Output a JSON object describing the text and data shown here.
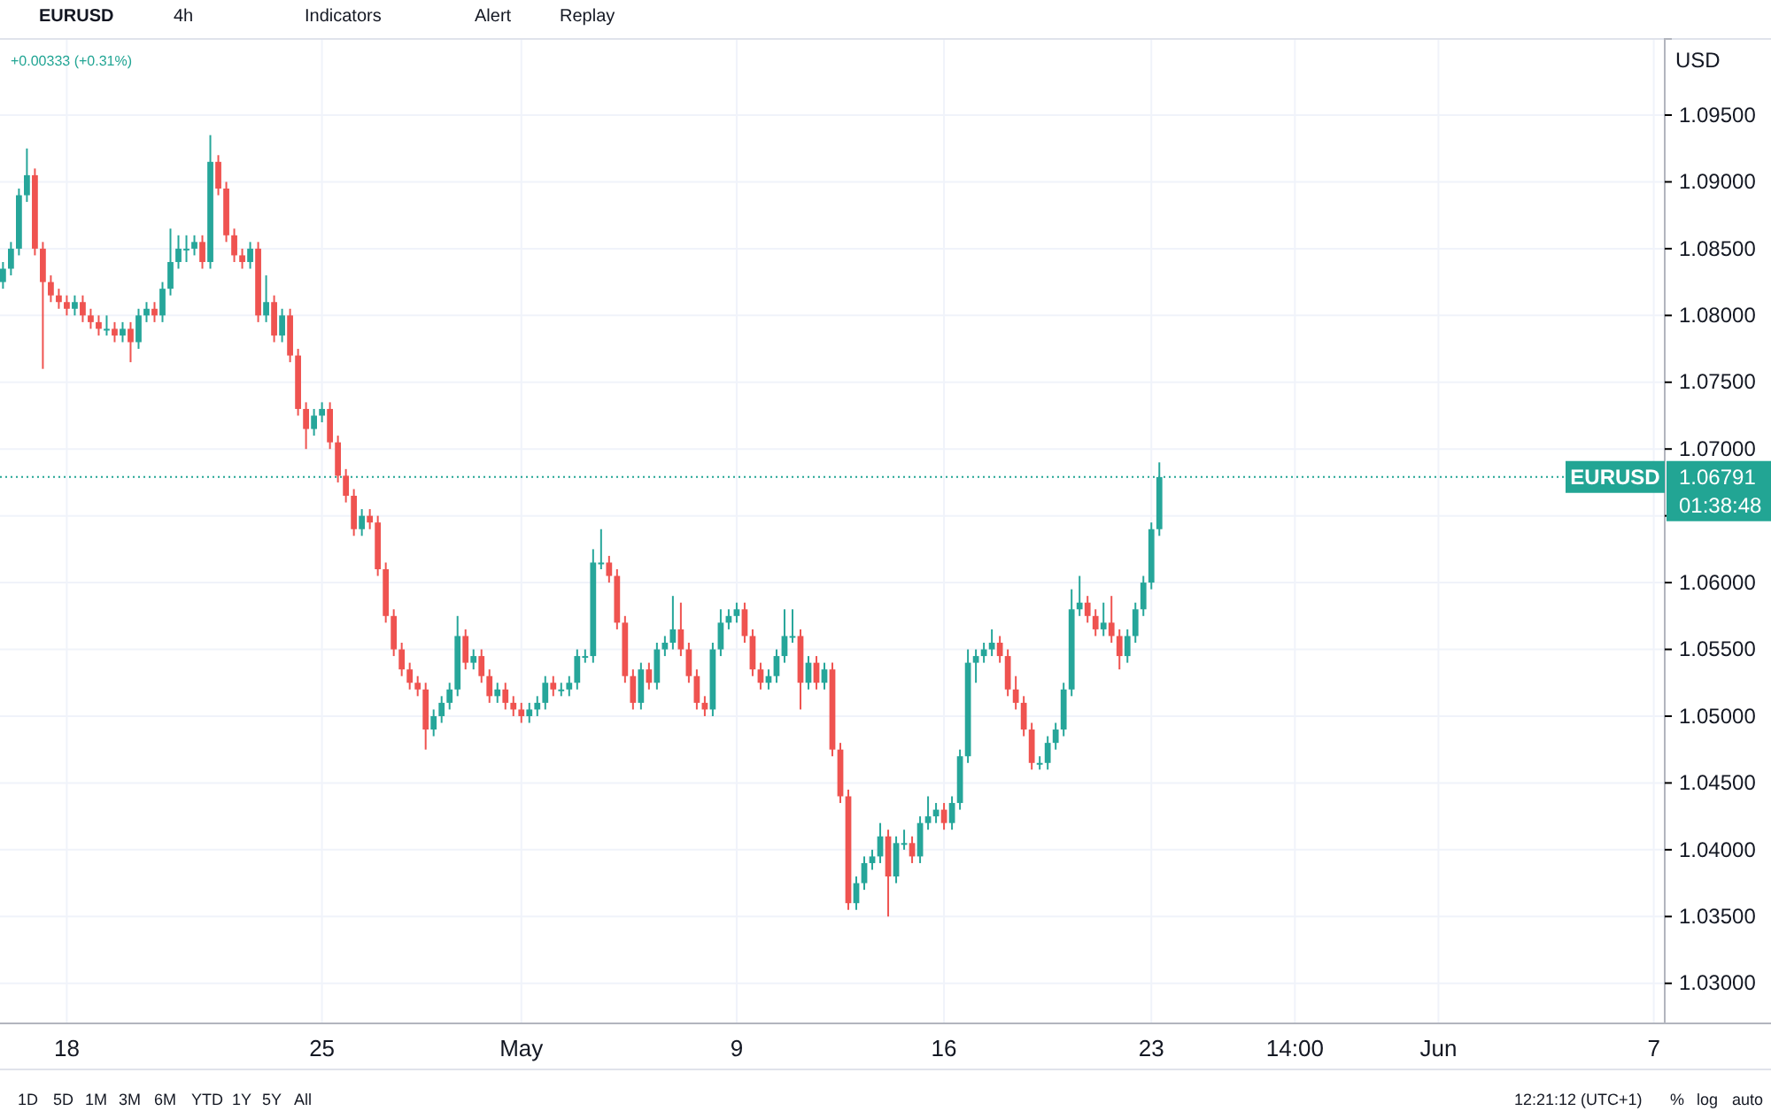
{
  "chart_data": {
    "type": "candlestick",
    "title": "EURUSD",
    "ylabel": "USD",
    "categories": [
      null,
      null,
      null,
      null,
      null,
      null,
      null,
      null,
      "18",
      null,
      null,
      null,
      null,
      null,
      null,
      null,
      null,
      null,
      null,
      null,
      null,
      null,
      null,
      null,
      null,
      null,
      null,
      null,
      null,
      null,
      null,
      null,
      null,
      null,
      null,
      null,
      null,
      null,
      null,
      null,
      "25",
      null,
      null,
      null,
      null,
      null,
      null,
      null,
      null,
      null,
      null,
      null,
      null,
      null,
      null,
      null,
      null,
      null,
      null,
      null,
      null,
      null,
      null,
      null,
      null,
      "May",
      null,
      null,
      null,
      null,
      null,
      null,
      null,
      null,
      null,
      null,
      null,
      null,
      null,
      null,
      null,
      null,
      null,
      null,
      null,
      null,
      null,
      null,
      null,
      null,
      null,
      null,
      "9",
      null,
      null,
      null,
      null,
      null,
      null,
      null,
      null,
      null,
      null,
      null,
      null,
      null,
      null,
      null,
      null,
      null,
      null,
      null,
      null,
      null,
      null,
      null,
      null,
      null,
      "16",
      null,
      null,
      null,
      null,
      null,
      null,
      null,
      null,
      null,
      null,
      null,
      null,
      null,
      null,
      null,
      null,
      null,
      null,
      null,
      null,
      null,
      null,
      null,
      null,
      null,
      "23",
      null,
      null,
      null,
      null,
      null,
      null,
      null,
      null,
      null,
      null,
      null,
      null,
      null,
      null,
      null,
      null,
      null,
      "14:00",
      null,
      null,
      null,
      null,
      null,
      null,
      null,
      null,
      null,
      null,
      null,
      null,
      null,
      null,
      null,
      null,
      null,
      "Jun",
      null,
      null,
      null,
      null,
      null,
      null,
      null,
      null,
      null,
      null,
      null,
      null,
      null,
      null,
      null,
      null,
      null,
      null,
      null,
      null,
      null,
      null,
      null,
      null,
      null,
      null,
      "7",
      null
    ],
    "ohlc": [
      [
        1.0825,
        1.084,
        1.082,
        1.0835
      ],
      [
        1.0835,
        1.0855,
        1.083,
        1.085
      ],
      [
        1.085,
        1.0895,
        1.0845,
        1.089
      ],
      [
        1.089,
        1.0925,
        1.0885,
        1.0905
      ],
      [
        1.0905,
        1.091,
        1.0845,
        1.085
      ],
      [
        1.085,
        1.0855,
        1.076,
        1.0825
      ],
      [
        1.0825,
        1.083,
        1.081,
        1.0815
      ],
      [
        1.0815,
        1.082,
        1.0805,
        1.081
      ],
      [
        1.081,
        1.0815,
        1.08,
        1.0805
      ],
      [
        1.0805,
        1.0815,
        1.08,
        1.081
      ],
      [
        1.081,
        1.0815,
        1.0795,
        1.08
      ],
      [
        1.08,
        1.0805,
        1.079,
        1.0795
      ],
      [
        1.0795,
        1.08,
        1.0785,
        1.079
      ],
      [
        1.079,
        1.08,
        1.0785,
        1.079
      ],
      [
        1.079,
        1.0795,
        1.078,
        1.0785
      ],
      [
        1.0785,
        1.0795,
        1.078,
        1.079
      ],
      [
        1.079,
        1.0795,
        1.0765,
        1.078
      ],
      [
        1.078,
        1.0805,
        1.0775,
        1.08
      ],
      [
        1.08,
        1.081,
        1.0795,
        1.0805
      ],
      [
        1.0805,
        1.081,
        1.0795,
        1.08
      ],
      [
        1.08,
        1.0825,
        1.0795,
        1.082
      ],
      [
        1.082,
        1.0865,
        1.0815,
        1.084
      ],
      [
        1.084,
        1.086,
        1.0835,
        1.085
      ],
      [
        1.085,
        1.086,
        1.084,
        1.085
      ],
      [
        1.085,
        1.086,
        1.0845,
        1.0855
      ],
      [
        1.0855,
        1.086,
        1.0835,
        1.084
      ],
      [
        1.084,
        1.0935,
        1.0835,
        1.0915
      ],
      [
        1.0915,
        1.092,
        1.089,
        1.0895
      ],
      [
        1.0895,
        1.09,
        1.0855,
        1.086
      ],
      [
        1.086,
        1.0865,
        1.084,
        1.0845
      ],
      [
        1.0845,
        1.085,
        1.0835,
        1.084
      ],
      [
        1.084,
        1.0855,
        1.0835,
        1.085
      ],
      [
        1.085,
        1.0855,
        1.0795,
        1.08
      ],
      [
        1.08,
        1.083,
        1.0795,
        1.081
      ],
      [
        1.081,
        1.0815,
        1.078,
        1.0785
      ],
      [
        1.0785,
        1.0805,
        1.078,
        1.08
      ],
      [
        1.08,
        1.0805,
        1.0765,
        1.077
      ],
      [
        1.077,
        1.0775,
        1.0725,
        1.073
      ],
      [
        1.073,
        1.0735,
        1.07,
        1.0715
      ],
      [
        1.0715,
        1.073,
        1.071,
        1.0725
      ],
      [
        1.0725,
        1.0735,
        1.072,
        1.073
      ],
      [
        1.073,
        1.0735,
        1.07,
        1.0705
      ],
      [
        1.0705,
        1.071,
        1.0675,
        1.068
      ],
      [
        1.068,
        1.0685,
        1.066,
        1.0665
      ],
      [
        1.0665,
        1.067,
        1.0635,
        1.064
      ],
      [
        1.064,
        1.0655,
        1.0635,
        1.065
      ],
      [
        1.065,
        1.0655,
        1.064,
        1.0645
      ],
      [
        1.0645,
        1.065,
        1.0605,
        1.061
      ],
      [
        1.061,
        1.0615,
        1.057,
        1.0575
      ],
      [
        1.0575,
        1.058,
        1.0545,
        1.055
      ],
      [
        1.055,
        1.0555,
        1.053,
        1.0535
      ],
      [
        1.0535,
        1.054,
        1.052,
        1.0525
      ],
      [
        1.0525,
        1.053,
        1.0515,
        1.052
      ],
      [
        1.052,
        1.0525,
        1.0475,
        1.049
      ],
      [
        1.049,
        1.0505,
        1.0485,
        1.05
      ],
      [
        1.05,
        1.0515,
        1.0495,
        1.051
      ],
      [
        1.051,
        1.0525,
        1.0505,
        1.052
      ],
      [
        1.052,
        1.0575,
        1.0515,
        1.056
      ],
      [
        1.056,
        1.0565,
        1.0535,
        1.054
      ],
      [
        1.054,
        1.055,
        1.0535,
        1.0545
      ],
      [
        1.0545,
        1.055,
        1.0525,
        1.053
      ],
      [
        1.053,
        1.0535,
        1.051,
        1.0515
      ],
      [
        1.0515,
        1.0525,
        1.051,
        1.052
      ],
      [
        1.052,
        1.0525,
        1.0505,
        1.051
      ],
      [
        1.051,
        1.0515,
        1.05,
        1.0505
      ],
      [
        1.0505,
        1.051,
        1.0495,
        1.05
      ],
      [
        1.05,
        1.051,
        1.0495,
        1.0505
      ],
      [
        1.0505,
        1.0515,
        1.05,
        1.051
      ],
      [
        1.051,
        1.053,
        1.0505,
        1.0525
      ],
      [
        1.0525,
        1.053,
        1.0515,
        1.052
      ],
      [
        1.052,
        1.0525,
        1.0515,
        1.052
      ],
      [
        1.052,
        1.053,
        1.0515,
        1.0525
      ],
      [
        1.0525,
        1.055,
        1.052,
        1.0545
      ],
      [
        1.0545,
        1.055,
        1.054,
        1.0545
      ],
      [
        1.0545,
        1.0625,
        1.054,
        1.0615
      ],
      [
        1.0615,
        1.064,
        1.061,
        1.0615
      ],
      [
        1.0615,
        1.062,
        1.06,
        1.0605
      ],
      [
        1.0605,
        1.061,
        1.0565,
        1.057
      ],
      [
        1.057,
        1.0575,
        1.0525,
        1.053
      ],
      [
        1.053,
        1.0535,
        1.0505,
        1.051
      ],
      [
        1.051,
        1.054,
        1.0505,
        1.0535
      ],
      [
        1.0535,
        1.054,
        1.052,
        1.0525
      ],
      [
        1.0525,
        1.0555,
        1.052,
        1.055
      ],
      [
        1.055,
        1.056,
        1.0545,
        1.0555
      ],
      [
        1.0555,
        1.059,
        1.055,
        1.0565
      ],
      [
        1.0565,
        1.0585,
        1.0545,
        1.055
      ],
      [
        1.055,
        1.0555,
        1.0525,
        1.053
      ],
      [
        1.053,
        1.0535,
        1.0505,
        1.051
      ],
      [
        1.051,
        1.0515,
        1.05,
        1.0505
      ],
      [
        1.0505,
        1.0555,
        1.05,
        1.055
      ],
      [
        1.055,
        1.058,
        1.0545,
        1.057
      ],
      [
        1.057,
        1.058,
        1.0565,
        1.0575
      ],
      [
        1.0575,
        1.0585,
        1.057,
        1.058
      ],
      [
        1.058,
        1.0585,
        1.0555,
        1.056
      ],
      [
        1.056,
        1.0565,
        1.053,
        1.0535
      ],
      [
        1.0535,
        1.054,
        1.052,
        1.0525
      ],
      [
        1.0525,
        1.0535,
        1.052,
        1.053
      ],
      [
        1.053,
        1.055,
        1.0525,
        1.0545
      ],
      [
        1.0545,
        1.058,
        1.054,
        1.056
      ],
      [
        1.056,
        1.058,
        1.0555,
        1.056
      ],
      [
        1.056,
        1.0565,
        1.0505,
        1.0525
      ],
      [
        1.0525,
        1.0545,
        1.052,
        1.054
      ],
      [
        1.054,
        1.0545,
        1.052,
        1.0525
      ],
      [
        1.0525,
        1.054,
        1.052,
        1.0535
      ],
      [
        1.0535,
        1.054,
        1.047,
        1.0475
      ],
      [
        1.0475,
        1.048,
        1.0435,
        1.044
      ],
      [
        1.044,
        1.0445,
        1.0355,
        1.036
      ],
      [
        1.036,
        1.038,
        1.0355,
        1.0375
      ],
      [
        1.0375,
        1.0395,
        1.037,
        1.039
      ],
      [
        1.039,
        1.04,
        1.0385,
        1.0395
      ],
      [
        1.0395,
        1.042,
        1.039,
        1.041
      ],
      [
        1.041,
        1.0415,
        1.035,
        1.038
      ],
      [
        1.038,
        1.041,
        1.0375,
        1.0405
      ],
      [
        1.0405,
        1.0415,
        1.04,
        1.0405
      ],
      [
        1.0405,
        1.041,
        1.039,
        1.0395
      ],
      [
        1.0395,
        1.0425,
        1.039,
        1.042
      ],
      [
        1.042,
        1.044,
        1.0415,
        1.0425
      ],
      [
        1.0425,
        1.0435,
        1.042,
        1.043
      ],
      [
        1.043,
        1.0435,
        1.0415,
        1.042
      ],
      [
        1.042,
        1.044,
        1.0415,
        1.0435
      ],
      [
        1.0435,
        1.0475,
        1.043,
        1.047
      ],
      [
        1.047,
        1.055,
        1.0465,
        1.054
      ],
      [
        1.054,
        1.055,
        1.0525,
        1.0545
      ],
      [
        1.0545,
        1.0555,
        1.054,
        1.055
      ],
      [
        1.055,
        1.0565,
        1.0545,
        1.0555
      ],
      [
        1.0555,
        1.056,
        1.054,
        1.0545
      ],
      [
        1.0545,
        1.055,
        1.0515,
        1.052
      ],
      [
        1.052,
        1.053,
        1.0505,
        1.051
      ],
      [
        1.051,
        1.0515,
        1.0485,
        1.049
      ],
      [
        1.049,
        1.0495,
        1.046,
        1.0465
      ],
      [
        1.0465,
        1.047,
        1.046,
        1.0465
      ],
      [
        1.0465,
        1.0485,
        1.046,
        1.048
      ],
      [
        1.048,
        1.0495,
        1.0475,
        1.049
      ],
      [
        1.049,
        1.0525,
        1.0485,
        1.052
      ],
      [
        1.052,
        1.0595,
        1.0515,
        1.058
      ],
      [
        1.058,
        1.0605,
        1.0575,
        1.0585
      ],
      [
        1.0585,
        1.059,
        1.057,
        1.0575
      ],
      [
        1.0575,
        1.058,
        1.056,
        1.0565
      ],
      [
        1.0565,
        1.0585,
        1.056,
        1.057
      ],
      [
        1.057,
        1.059,
        1.0555,
        1.056
      ],
      [
        1.056,
        1.0565,
        1.0535,
        1.0545
      ],
      [
        1.0545,
        1.0565,
        1.054,
        1.056
      ],
      [
        1.056,
        1.0585,
        1.0555,
        1.058
      ],
      [
        1.058,
        1.0605,
        1.0575,
        1.06
      ],
      [
        1.06,
        1.0645,
        1.0595,
        1.064
      ],
      [
        1.064,
        1.069,
        1.0635,
        1.0679
      ],
      null,
      null,
      null,
      null,
      null,
      null,
      null,
      null,
      null,
      null,
      null,
      null,
      null,
      null,
      null,
      null,
      null,
      null,
      null,
      null,
      null,
      null,
      null,
      null,
      null,
      null,
      null,
      null,
      null,
      null,
      null,
      null,
      null,
      null,
      null,
      null,
      null,
      null,
      null,
      null,
      null,
      null,
      null,
      null,
      null,
      null,
      null,
      null,
      null,
      null,
      null,
      null,
      null,
      null,
      null,
      null,
      null,
      null,
      null,
      null,
      null,
      null,
      null
    ],
    "colors": [
      "#26a69a",
      "#26a69a",
      "#26a69a",
      "#26a69a",
      "#ef5350",
      "#ef5350",
      "#ef5350",
      "#ef5350",
      "#ef5350",
      "#26a69a",
      "#ef5350",
      "#ef5350",
      "#ef5350",
      "#26a69a",
      "#ef5350",
      "#26a69a",
      "#ef5350",
      "#26a69a",
      "#26a69a",
      "#ef5350",
      "#26a69a",
      "#26a69a",
      "#26a69a",
      "#26a69a",
      "#26a69a",
      "#ef5350",
      "#26a69a",
      "#ef5350",
      "#ef5350",
      "#ef5350",
      "#ef5350",
      "#26a69a",
      "#ef5350",
      "#26a69a",
      "#ef5350",
      "#26a69a",
      "#ef5350",
      "#ef5350",
      "#ef5350",
      "#26a69a",
      "#26a69a",
      "#ef5350",
      "#ef5350",
      "#ef5350",
      "#ef5350",
      "#26a69a",
      "#ef5350",
      "#ef5350",
      "#ef5350",
      "#ef5350",
      "#ef5350",
      "#ef5350",
      "#ef5350",
      "#ef5350",
      "#26a69a",
      "#26a69a",
      "#26a69a",
      "#26a69a",
      "#ef5350",
      "#26a69a",
      "#ef5350",
      "#ef5350",
      "#26a69a",
      "#ef5350",
      "#ef5350",
      "#ef5350",
      "#26a69a",
      "#26a69a",
      "#26a69a",
      "#ef5350",
      "#26a69a",
      "#26a69a",
      "#26a69a",
      "#26a69a",
      "#26a69a",
      "#26a69a",
      "#ef5350",
      "#ef5350",
      "#ef5350",
      "#ef5350",
      "#26a69a",
      "#ef5350",
      "#26a69a",
      "#26a69a",
      "#26a69a",
      "#ef5350",
      "#ef5350",
      "#ef5350",
      "#ef5350",
      "#26a69a",
      "#26a69a",
      "#26a69a",
      "#26a69a",
      "#ef5350",
      "#ef5350",
      "#ef5350",
      "#26a69a",
      "#26a69a",
      "#26a69a",
      "#26a69a",
      "#ef5350",
      "#26a69a",
      "#ef5350",
      "#26a69a",
      "#ef5350",
      "#ef5350",
      "#ef5350",
      "#26a69a",
      "#26a69a",
      "#26a69a",
      "#26a69a",
      "#ef5350",
      "#26a69a",
      "#26a69a",
      "#ef5350",
      "#26a69a",
      "#26a69a",
      "#26a69a",
      "#ef5350",
      "#26a69a",
      "#26a69a",
      "#26a69a",
      "#26a69a",
      "#26a69a",
      "#26a69a",
      "#ef5350",
      "#ef5350",
      "#ef5350",
      "#ef5350",
      "#ef5350",
      "#26a69a",
      "#26a69a",
      "#26a69a",
      "#26a69a",
      "#26a69a",
      "#26a69a",
      "#ef5350",
      "#ef5350",
      "#26a69a",
      "#ef5350",
      "#ef5350",
      "#26a69a",
      "#26a69a",
      "#26a69a",
      "#26a69a",
      "#26a69a",
      null,
      null,
      null,
      null,
      null,
      null,
      null,
      null,
      null,
      null,
      null,
      null,
      null,
      null,
      null,
      null,
      null,
      null,
      null,
      null,
      null,
      null,
      null,
      null,
      null,
      null,
      null,
      null,
      null,
      null,
      null,
      null,
      null,
      null,
      null,
      null,
      null,
      null,
      null,
      null,
      null,
      null,
      null,
      null,
      null,
      null,
      null,
      null,
      null,
      null,
      null,
      null,
      null,
      null,
      null,
      null,
      null,
      null,
      null,
      null,
      null,
      null,
      null
    ],
    "ylim": [
      1.027,
      1.1007
    ],
    "yticks": [
      {
        "value": 1.03,
        "label": "1.03000"
      },
      {
        "value": 1.035,
        "label": "1.03500"
      },
      {
        "value": 1.04,
        "label": "1.04000"
      },
      {
        "value": 1.045,
        "label": "1.04500"
      },
      {
        "value": 1.05,
        "label": "1.05000"
      },
      {
        "value": 1.055,
        "label": "1.05500"
      },
      {
        "value": 1.06,
        "label": "1.06000"
      },
      {
        "value": 1.065,
        "label": null
      },
      {
        "value": 1.07,
        "label": "1.07000"
      },
      {
        "value": 1.075,
        "label": "1.07500"
      },
      {
        "value": 1.08,
        "label": "1.08000"
      },
      {
        "value": 1.085,
        "label": "1.08500"
      },
      {
        "value": 1.09,
        "label": "1.09000"
      },
      {
        "value": 1.095,
        "label": "1.09500"
      }
    ],
    "grid": true,
    "ref_lines": [
      {
        "axis": "y",
        "value": 1.06791,
        "label": "1.06791",
        "color": "#22a594",
        "line_style": "dotted"
      }
    ],
    "annotations": [
      "4h",
      "Indicators",
      "Alert",
      "Replay",
      "+0.00333 (+0.31%)",
      "1D",
      "5D",
      "1M",
      "3M",
      "6M",
      "YTD",
      "1Y",
      "5Y",
      "All",
      "12:21:12 (UTC+1)",
      "%",
      "log",
      "auto",
      "01:38:48"
    ]
  }
}
